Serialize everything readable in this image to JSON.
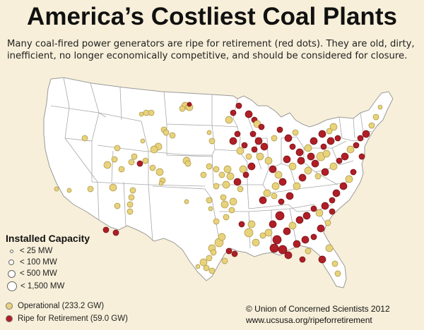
{
  "header": {
    "title": "America’s Costliest Coal Plants",
    "subtitle": "Many coal-fired power generators are ripe for retirement (red dots). They are old, dirty, inefficient, no longer economically competitive, and should be considered for closure."
  },
  "colors": {
    "background": "#f7efd9",
    "land": "#ffffff",
    "state_border": "#a7a7a7",
    "operational": "#e8d37c",
    "retirement": "#b01e26"
  },
  "legend": {
    "title": "Installed Capacity",
    "sizes": [
      {
        "label": "< 25 MW"
      },
      {
        "label": "< 100 MW"
      },
      {
        "label": "< 500 MW"
      },
      {
        "label": "< 1,500 MW"
      }
    ],
    "statuses": [
      {
        "label": "Operational (233.2 GW)",
        "color": "#e8d37c"
      },
      {
        "label": "Ripe for Retirement (59.0 GW)",
        "color": "#b01e26"
      }
    ]
  },
  "credit": {
    "line1": "© Union of Concerned Scientists 2012",
    "line2": "www.ucsusa.org/ripeforretirement"
  }
}
